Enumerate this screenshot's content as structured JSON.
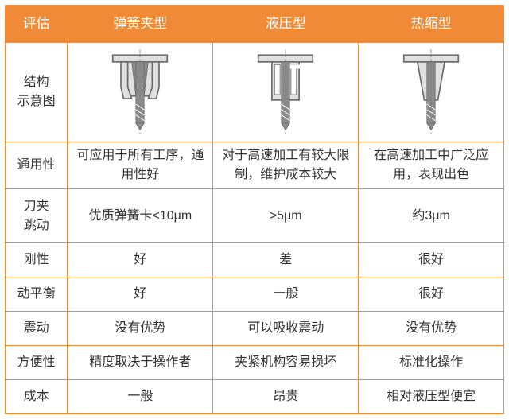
{
  "colors": {
    "header_bg": "#f08a36",
    "header_fg": "#ffffff",
    "border": "#f08a36",
    "text": "#333333",
    "diagram_fill": "#e0e0e0",
    "diagram_stroke": "#6b6b6b",
    "diagram_dark": "#8a8a8a",
    "centerline": "#808080"
  },
  "table": {
    "header": [
      "评估",
      "弹簧夹型",
      "液压型",
      "热缩型"
    ],
    "rows": [
      {
        "label": "结构\n示意图",
        "cells": [
          "__diagram_A__",
          "__diagram_B__",
          "__diagram_C__"
        ]
      },
      {
        "label": "通用性",
        "cells": [
          "可应用于所有工序，通用性好",
          "对于高速加工有较大限制，维护成本较大",
          "在高速加工中广泛应用，表现出色"
        ]
      },
      {
        "label": "刀夹\n跳动",
        "cells": [
          "优质弹簧卡<10μm",
          ">5μm",
          "约3μm"
        ]
      },
      {
        "label": "刚性",
        "cells": [
          "好",
          "差",
          "很好"
        ]
      },
      {
        "label": "动平衡",
        "cells": [
          "好",
          "一般",
          "很好"
        ]
      },
      {
        "label": "震动",
        "cells": [
          "没有优势",
          "可以吸收震动",
          "没有优势"
        ]
      },
      {
        "label": "方便性",
        "cells": [
          "精度取决于操作者",
          "夹紧机构容易损坏",
          "标准化操作"
        ]
      },
      {
        "label": "成本",
        "cells": [
          "一般",
          "昂贵",
          "相对液压型便宜"
        ]
      }
    ]
  }
}
